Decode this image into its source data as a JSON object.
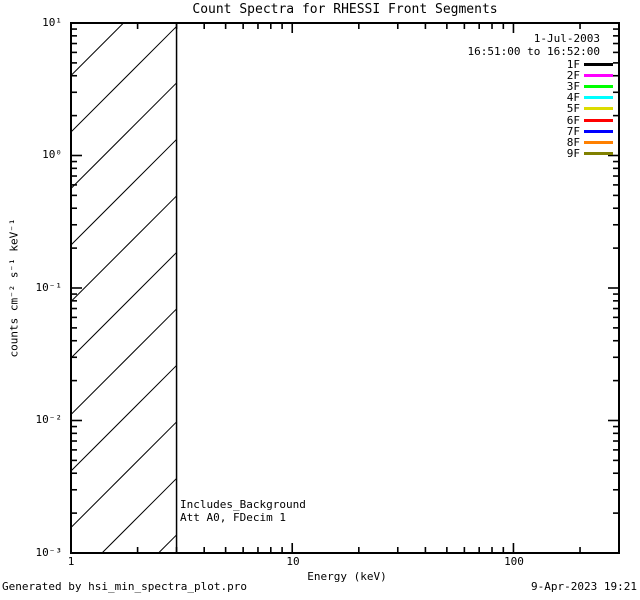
{
  "title": "Count Spectra for RHESSI Front Segments",
  "header": {
    "date": "1-Jul-2003",
    "time_range": "16:51:00 to 16:52:00"
  },
  "annotations": {
    "line1": "Includes_Background",
    "line2": "Att A0, FDecim 1"
  },
  "footer": {
    "credit": "Generated by hsi_min_spectra_plot.pro",
    "timestamp": "9-Apr-2023 19:21"
  },
  "axes": {
    "xlabel": "Energy (keV)",
    "ylabel": "counts cm⁻² s⁻¹ keV⁻¹",
    "x_tick_labels": [
      "1",
      "10",
      "100"
    ],
    "y_tick_labels": [
      "10¹",
      "10⁰",
      "10⁻¹",
      "10⁻²",
      "10⁻³"
    ]
  },
  "chart_data": {
    "type": "line",
    "title": "Count Spectra for RHESSI Front Segments",
    "xlabel": "Energy (keV)",
    "ylabel": "counts cm^-2 s^-1 keV^-1",
    "x_scale": "log",
    "y_scale": "log",
    "xlim": [
      1,
      300
    ],
    "ylim": [
      0.001,
      10
    ],
    "x_major_ticks": [
      1,
      10,
      100
    ],
    "y_major_ticks": [
      0.001,
      0.01,
      0.1,
      1,
      10
    ],
    "grid": false,
    "legend_position": "top-right",
    "series": [
      {
        "name": "1F",
        "color": "#000000",
        "values": []
      },
      {
        "name": "2F",
        "color": "#ff00ff",
        "values": []
      },
      {
        "name": "3F",
        "color": "#00ff00",
        "values": []
      },
      {
        "name": "4F",
        "color": "#00ffff",
        "values": []
      },
      {
        "name": "5F",
        "color": "#dcdc00",
        "values": []
      },
      {
        "name": "6F",
        "color": "#ff0000",
        "values": []
      },
      {
        "name": "7F",
        "color": "#0000ff",
        "values": []
      },
      {
        "name": "8F",
        "color": "#ff8000",
        "values": []
      },
      {
        "name": "9F",
        "color": "#808000",
        "values": []
      }
    ],
    "note": "No spectra curves are drawn in the plot area; only a hatched band is shown.",
    "hatched_region": {
      "x_range": [
        1,
        3
      ],
      "style": "diagonal-45deg-hatch"
    }
  }
}
